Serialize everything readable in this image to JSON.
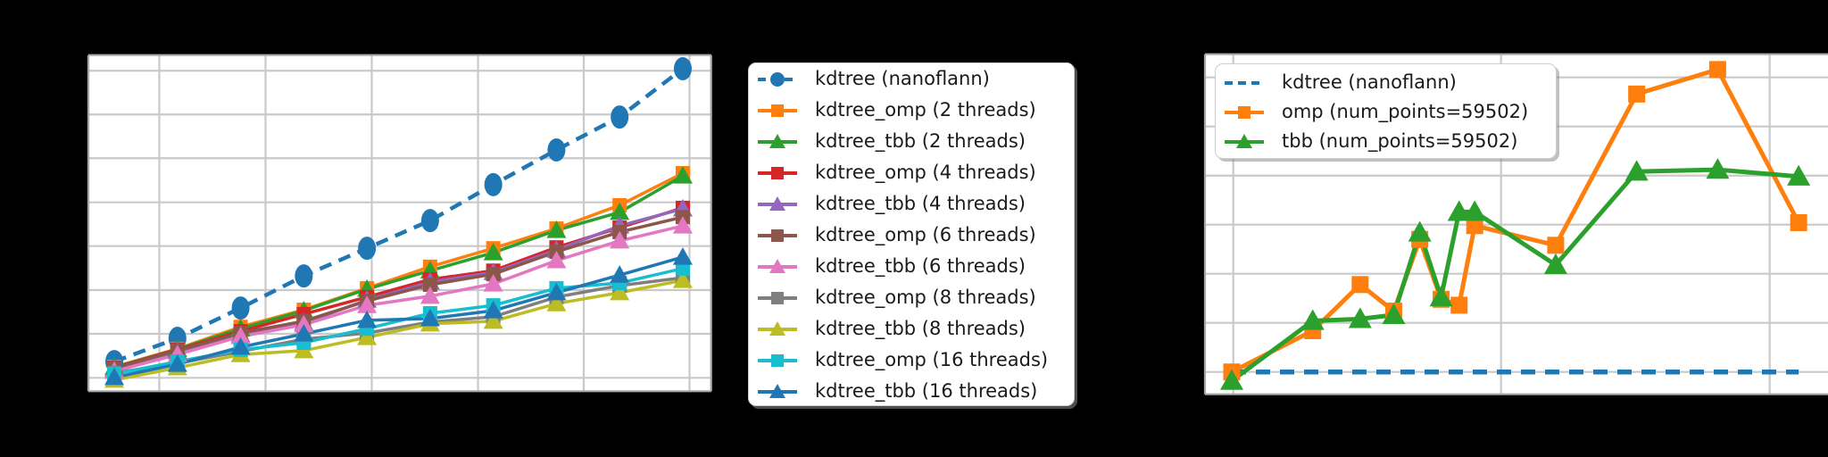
{
  "figure": {
    "background_color": "#000000",
    "plot_background_color": "#ffffff",
    "grid_color": "#c9c9c9",
    "spine_color": "#a8a8a8",
    "note": "Axis titles and tick labels are rendered in black on the black figure background and are not visible in the screenshot."
  },
  "chart_data": [
    {
      "type": "line",
      "name": "kdtree-build-time-vs-num-points",
      "x_axis": {
        "scale": "log",
        "tick_labels_visible": false,
        "num_vertical_gridlines": 6
      },
      "y_axis": {
        "tick_labels_visible": false,
        "unit": "gridline steps (0 = bottom gridline)",
        "gridline_values": [
          0,
          1,
          2,
          3,
          4,
          5,
          6,
          7
        ]
      },
      "x_index": [
        1,
        2,
        3,
        4,
        5,
        6,
        7,
        8,
        9,
        10
      ],
      "series": [
        {
          "label": "kdtree (nanoflann)",
          "color": "#1f77b4",
          "marker": "circle",
          "line": "dashed",
          "values": [
            0.37,
            0.9,
            1.59,
            2.32,
            2.95,
            3.58,
            4.4,
            5.19,
            5.94,
            7.04
          ]
        },
        {
          "label": "kdtree_omp (2 threads)",
          "color": "#ff7f0e",
          "marker": "square",
          "line": "solid",
          "values": [
            0.25,
            0.66,
            1.16,
            1.55,
            2.04,
            2.53,
            2.95,
            3.4,
            3.93,
            4.66
          ]
        },
        {
          "label": "kdtree_tbb (2 threads)",
          "color": "#2ca02c",
          "marker": "triangle",
          "line": "solid",
          "values": [
            0.24,
            0.65,
            1.12,
            1.53,
            2.02,
            2.44,
            2.85,
            3.36,
            3.77,
            4.6
          ]
        },
        {
          "label": "kdtree_omp (4 threads)",
          "color": "#d62728",
          "marker": "square",
          "line": "solid",
          "values": [
            0.23,
            0.64,
            1.06,
            1.45,
            1.84,
            2.24,
            2.44,
            2.97,
            3.42,
            3.87
          ]
        },
        {
          "label": "kdtree_tbb (4 threads)",
          "color": "#9467bd",
          "marker": "triangle",
          "line": "solid",
          "values": [
            0.19,
            0.6,
            0.98,
            1.25,
            1.77,
            2.18,
            2.4,
            2.91,
            3.46,
            3.85
          ]
        },
        {
          "label": "kdtree_omp (6 threads)",
          "color": "#8c564b",
          "marker": "square",
          "line": "solid",
          "values": [
            0.22,
            0.62,
            1.02,
            1.29,
            1.75,
            2.12,
            2.36,
            2.87,
            3.32,
            3.66
          ]
        },
        {
          "label": "kdtree_tbb (6 threads)",
          "color": "#e377c2",
          "marker": "triangle",
          "line": "solid",
          "values": [
            0.15,
            0.53,
            0.94,
            1.21,
            1.65,
            1.86,
            2.14,
            2.67,
            3.12,
            3.46
          ]
        },
        {
          "label": "kdtree_omp (8 threads)",
          "color": "#7f7f7f",
          "marker": "square",
          "line": "solid",
          "values": [
            0.11,
            0.33,
            0.6,
            0.88,
            1.02,
            1.27,
            1.39,
            1.84,
            2.1,
            2.28
          ]
        },
        {
          "label": "kdtree_tbb (8 threads)",
          "color": "#bcbd22",
          "marker": "triangle",
          "line": "solid",
          "values": [
            -0.05,
            0.23,
            0.53,
            0.62,
            0.92,
            1.23,
            1.29,
            1.69,
            1.94,
            2.22
          ]
        },
        {
          "label": "kdtree_omp (16 threads)",
          "color": "#17becf",
          "marker": "square",
          "line": "solid",
          "values": [
            0.09,
            0.37,
            0.64,
            0.8,
            1.12,
            1.47,
            1.65,
            2.04,
            2.16,
            2.49
          ]
        },
        {
          "label": "kdtree_tbb (16 threads)",
          "color": "#1f77b4",
          "marker": "triangle",
          "line": "solid",
          "values": [
            0.01,
            0.31,
            0.7,
            1.0,
            1.31,
            1.35,
            1.53,
            1.94,
            2.34,
            2.75
          ]
        }
      ]
    },
    {
      "type": "line",
      "name": "speedup-vs-num-threads",
      "x_axis": {
        "scale": "log10",
        "tick_labels_visible": false,
        "gridline_x_values": [
          1,
          10,
          100
        ]
      },
      "y_axis": {
        "tick_labels_visible": false,
        "gridline_step": 0.5,
        "baseline_value": 1.0,
        "gridline_values": [
          1.0,
          1.5,
          2.0,
          2.5,
          3.0,
          3.5,
          4.0
        ]
      },
      "series": [
        {
          "label": "kdtree (nanoflann)",
          "color": "#1f77b4",
          "marker": "none",
          "line": "dashed",
          "x": [
            1,
            128
          ],
          "values": [
            1.0,
            1.0
          ]
        },
        {
          "label": "omp (num_points=59502)",
          "color": "#ff7f0e",
          "marker": "square",
          "line": "solid",
          "x": [
            1,
            2,
            3,
            4,
            5,
            6,
            7,
            8,
            16,
            32,
            64,
            128
          ],
          "values": [
            1.0,
            1.42,
            1.89,
            1.62,
            2.35,
            1.74,
            1.68,
            2.49,
            2.29,
            3.83,
            4.08,
            2.52
          ]
        },
        {
          "label": "tbb (num_points=59502)",
          "color": "#2ca02c",
          "marker": "triangle",
          "line": "solid",
          "x": [
            1,
            2,
            3,
            4,
            5,
            6,
            7,
            8,
            16,
            32,
            64,
            128
          ],
          "values": [
            0.91,
            1.52,
            1.54,
            1.58,
            2.42,
            1.76,
            2.63,
            2.63,
            2.09,
            3.04,
            3.06,
            2.99
          ]
        }
      ]
    }
  ],
  "legends": {
    "left_title": "",
    "right_title": ""
  }
}
